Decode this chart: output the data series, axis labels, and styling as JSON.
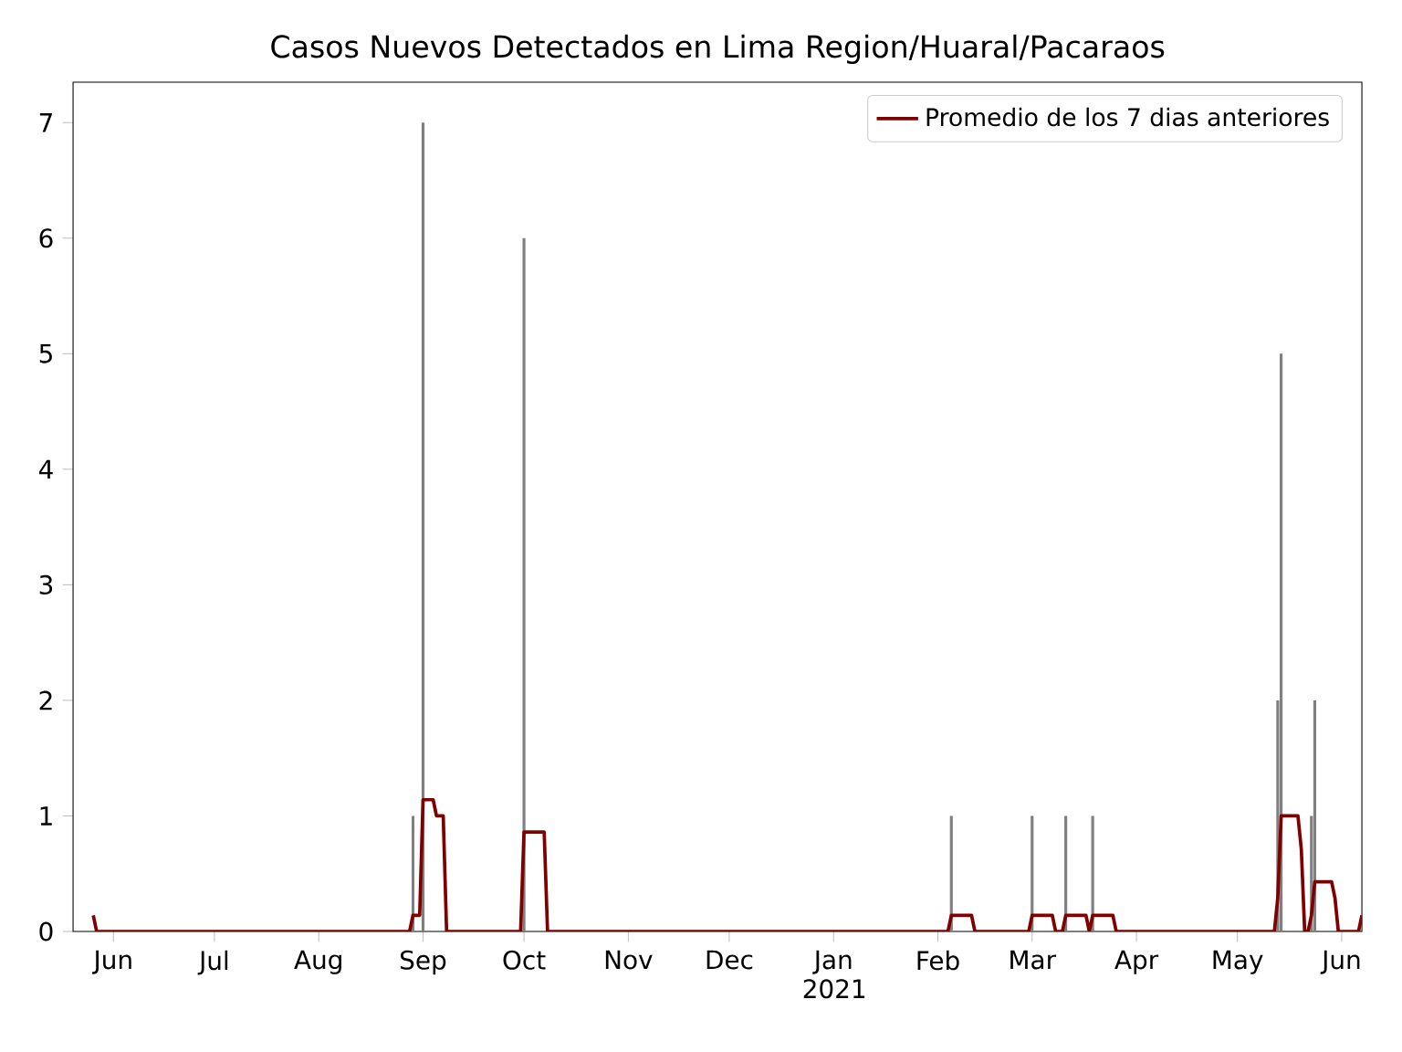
{
  "chart_data": {
    "type": "bar",
    "title": "Casos Nuevos Detectados en Lima Region/Huaral/Pacaraos",
    "series": [
      {
        "color": "#808080",
        "x": [
          "2020-08-29",
          "2020-09-01",
          "2020-10-01",
          "2021-02-05",
          "2021-03-01",
          "2021-03-11",
          "2021-03-19",
          "2021-05-13",
          "2021-05-14",
          "2021-05-23",
          "2021-05-24"
        ],
        "values": [
          1,
          7,
          6,
          1,
          1,
          1,
          1,
          2,
          5,
          1,
          2
        ]
      },
      {
        "type": "line",
        "name": "Promedio de los 7 dias anteriores",
        "color": "#800000",
        "x": [
          "2020-05-26",
          "2020-05-27",
          "2020-08-28",
          "2020-08-29",
          "2020-08-31",
          "2020-09-01",
          "2020-09-04",
          "2020-09-05",
          "2020-09-07",
          "2020-09-08",
          "2020-09-30",
          "2020-10-01",
          "2020-10-07",
          "2020-10-08",
          "2021-02-04",
          "2021-02-05",
          "2021-02-11",
          "2021-02-12",
          "2021-02-28",
          "2021-03-01",
          "2021-03-07",
          "2021-03-08",
          "2021-03-10",
          "2021-03-11",
          "2021-03-17",
          "2021-03-18",
          "2021-03-19",
          "2021-03-25",
          "2021-03-26",
          "2021-05-12",
          "2021-05-13",
          "2021-05-14",
          "2021-05-19",
          "2021-05-20",
          "2021-05-21",
          "2021-05-22",
          "2021-05-23",
          "2021-05-24",
          "2021-05-29",
          "2021-05-30",
          "2021-05-31",
          "2021-06-06",
          "2021-06-07"
        ],
        "values": [
          0.14,
          0,
          0,
          0.14,
          0.14,
          1.14,
          1.14,
          1.0,
          1.0,
          0,
          0,
          0.86,
          0.86,
          0,
          0,
          0.14,
          0.14,
          0,
          0,
          0.14,
          0.14,
          0,
          0,
          0.14,
          0.14,
          0,
          0.14,
          0.14,
          0,
          0,
          0.29,
          1.0,
          1.0,
          0.71,
          0,
          0,
          0.14,
          0.43,
          0.43,
          0.29,
          0,
          0,
          0.14
        ]
      }
    ],
    "xlim": [
      "2020-05-20",
      "2021-06-07"
    ],
    "xticks": [
      {
        "value": "2020-06-01",
        "label": "Jun"
      },
      {
        "value": "2020-07-01",
        "label": "Jul"
      },
      {
        "value": "2020-08-01",
        "label": "Aug"
      },
      {
        "value": "2020-09-01",
        "label": "Sep"
      },
      {
        "value": "2020-10-01",
        "label": "Oct"
      },
      {
        "value": "2020-11-01",
        "label": "Nov"
      },
      {
        "value": "2020-12-01",
        "label": "Dec"
      },
      {
        "value": "2021-01-01",
        "label": "Jan 2021"
      },
      {
        "value": "2021-02-01",
        "label": "Feb"
      },
      {
        "value": "2021-03-01",
        "label": "Mar"
      },
      {
        "value": "2021-04-01",
        "label": "Apr"
      },
      {
        "value": "2021-05-01",
        "label": "May"
      },
      {
        "value": "2021-06-01",
        "label": "Jun"
      }
    ],
    "ylim": [
      0,
      7.35
    ],
    "yticks": [
      0,
      1,
      2,
      3,
      4,
      5,
      6,
      7
    ],
    "grid": false,
    "legend": "top right"
  }
}
